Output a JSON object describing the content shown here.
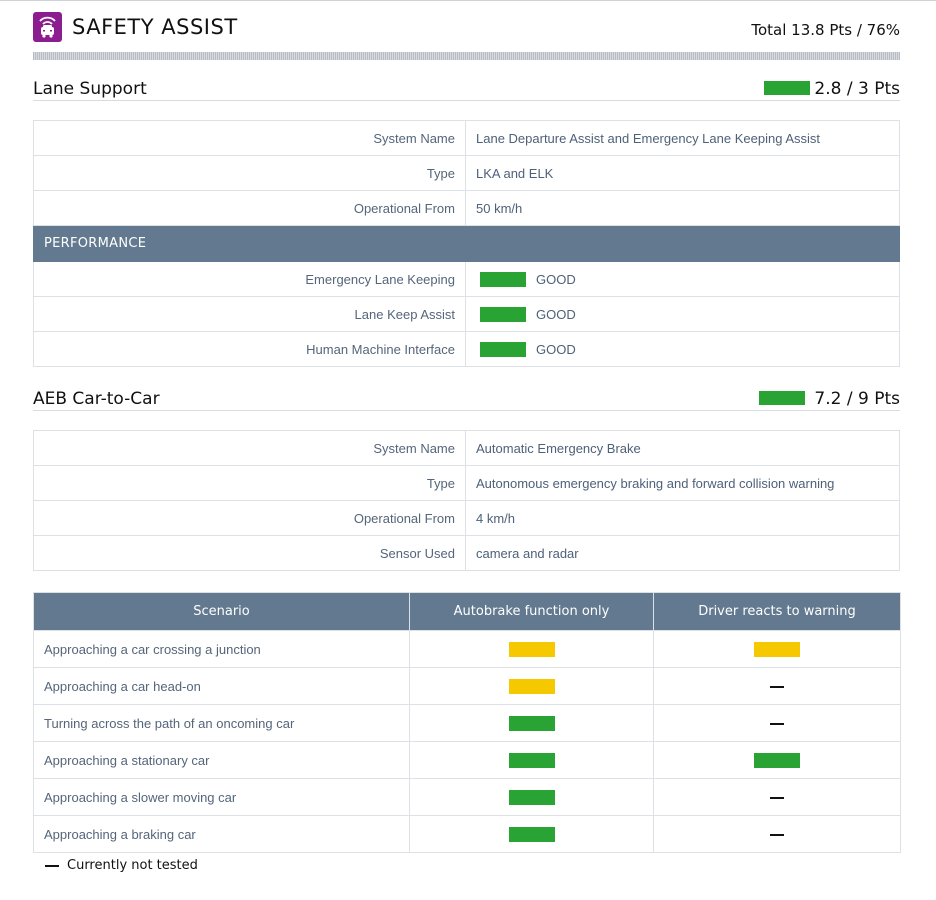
{
  "header": {
    "title": "SAFETY ASSIST",
    "total": "Total 13.8 Pts / 76%",
    "logo_icon": "car-in-signal-icon",
    "logo_color": "#8c1d91"
  },
  "lane_support": {
    "title": "Lane Support",
    "points": "2.8 / 3 Pts",
    "bar_color": "#2aa335",
    "rows": [
      {
        "label": "System Name",
        "value": "Lane Departure Assist and Emergency Lane Keeping Assist"
      },
      {
        "label": "Type",
        "value": "LKA and ELK"
      },
      {
        "label": "Operational From",
        "value": "50 km/h"
      }
    ],
    "performance_header": "PERFORMANCE",
    "performance": [
      {
        "label": "Emergency Lane Keeping",
        "rating": "GOOD",
        "color": "#2aa335"
      },
      {
        "label": "Lane Keep Assist",
        "rating": "GOOD",
        "color": "#2aa335"
      },
      {
        "label": "Human Machine Interface",
        "rating": "GOOD",
        "color": "#2aa335"
      }
    ]
  },
  "aeb": {
    "title": "AEB Car-to-Car",
    "points": "7.2 / 9 Pts",
    "bar_color": "#2aa335",
    "rows": [
      {
        "label": "System Name",
        "value": "Automatic Emergency Brake"
      },
      {
        "label": "Type",
        "value": "Autonomous emergency braking and forward collision warning"
      },
      {
        "label": "Operational From",
        "value": "4 km/h"
      },
      {
        "label": "Sensor Used",
        "value": "camera and radar"
      }
    ]
  },
  "scenarios": {
    "headers": [
      "Scenario",
      "Autobrake function only",
      "Driver reacts to warning"
    ],
    "colors": {
      "green": "#2aa335",
      "yellow": "#f5c800"
    },
    "rows": [
      {
        "name": "Approaching a car crossing a junction",
        "autobrake": "yellow",
        "driver": "yellow"
      },
      {
        "name": "Approaching a car head-on",
        "autobrake": "yellow",
        "driver": "not-tested"
      },
      {
        "name": "Turning across the path of an oncoming car",
        "autobrake": "green",
        "driver": "not-tested"
      },
      {
        "name": "Approaching a stationary car",
        "autobrake": "green",
        "driver": "green"
      },
      {
        "name": "Approaching a slower moving car",
        "autobrake": "green",
        "driver": "not-tested"
      },
      {
        "name": "Approaching a braking car",
        "autobrake": "green",
        "driver": "not-tested"
      }
    ]
  },
  "legend": {
    "not_tested": "Currently not tested"
  }
}
